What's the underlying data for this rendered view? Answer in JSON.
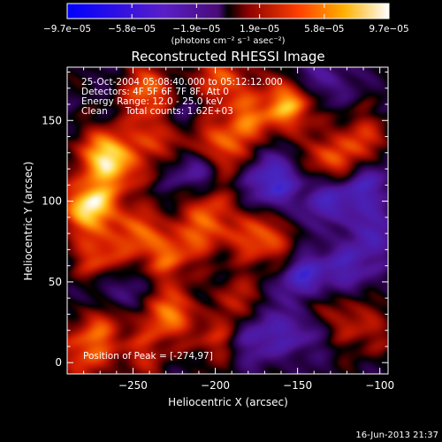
{
  "chart_data": {
    "type": "heatmap",
    "title": "Reconstructed RHESSI Image",
    "xlabel": "Heliocentric X (arcsec)",
    "ylabel": "Heliocentric Y (arcsec)",
    "xlim": [
      -290,
      -95
    ],
    "ylim": [
      -7,
      183
    ],
    "x_ticks": [
      -250,
      -200,
      -150,
      -100
    ],
    "x_tick_labels": [
      "−250",
      "−200",
      "−150",
      "−100"
    ],
    "y_ticks": [
      0,
      50,
      100,
      150
    ],
    "y_tick_labels": [
      "0",
      "50",
      "100",
      "150"
    ],
    "colorbar": {
      "tick_values": [
        -9.7e-05,
        -5.8e-05,
        -1.9e-05,
        1.9e-05,
        5.8e-05,
        9.7e-05
      ],
      "tick_labels": [
        "−9.7e−05",
        "−5.8e−05",
        "−1.9e−05",
        "1.9e−05",
        "5.8e−05",
        "9.7e−05"
      ],
      "unit_label": "(photons cm⁻² s⁻¹ asec⁻²)",
      "range": [
        -9.7e-05,
        9.7e-05
      ]
    },
    "annotations": {
      "time_range": "25-Oct-2004 05:08:40.000 to 05:12:12.000",
      "detectors": "Detectors: 4F 5F 6F 7F 8F, Att 0",
      "energy": "Energy Range: 12.0 - 25.0 keV",
      "clean": "Clean      Total counts: 1.62E+03",
      "peak": "Position of Peak = [-274,97]"
    },
    "peak_position": [
      -274,
      97
    ],
    "sources": [
      {
        "x": -276,
        "y": 97,
        "value": 9.7e-05
      },
      {
        "x": -270,
        "y": 130,
        "value": 6.5e-05
      },
      {
        "x": -240,
        "y": 168,
        "value": 6e-05
      },
      {
        "x": -195,
        "y": 175,
        "value": 5.5e-05
      },
      {
        "x": -155,
        "y": 160,
        "value": 7.5e-05
      },
      {
        "x": -258,
        "y": 120,
        "value": 5e-05
      },
      {
        "x": -238,
        "y": 140,
        "value": 4.8e-05
      },
      {
        "x": -208,
        "y": 140,
        "value": 4.2e-05
      },
      {
        "x": -196,
        "y": 128,
        "value": 4e-05
      },
      {
        "x": -180,
        "y": 150,
        "value": 5.2e-05
      },
      {
        "x": -128,
        "y": 125,
        "value": 5.8e-05
      },
      {
        "x": -110,
        "y": 140,
        "value": 3.5e-05
      },
      {
        "x": -270,
        "y": 65,
        "value": 5e-05
      },
      {
        "x": -248,
        "y": 82,
        "value": 4.5e-05
      },
      {
        "x": -230,
        "y": 65,
        "value": 4.8e-05
      },
      {
        "x": -212,
        "y": 80,
        "value": 4.2e-05
      },
      {
        "x": -205,
        "y": 100,
        "value": 4e-05
      },
      {
        "x": -180,
        "y": 80,
        "value": 5e-05
      },
      {
        "x": -160,
        "y": 70,
        "value": 3.2e-05
      },
      {
        "x": -230,
        "y": 30,
        "value": 6.2e-05
      },
      {
        "x": -270,
        "y": 22,
        "value": 4e-05
      },
      {
        "x": -280,
        "y": 5,
        "value": 4.5e-05
      },
      {
        "x": -200,
        "y": 15,
        "value": 3.5e-05
      },
      {
        "x": -245,
        "y": 5,
        "value": 3.2e-05
      },
      {
        "x": -188,
        "y": 40,
        "value": 3e-05
      },
      {
        "x": -140,
        "y": 40,
        "value": 3e-05
      },
      {
        "x": -122,
        "y": 28,
        "value": 2.5e-05
      },
      {
        "x": -105,
        "y": 18,
        "value": 2.2e-05
      },
      {
        "x": -165,
        "y": 112,
        "value": -6.5e-05
      },
      {
        "x": -210,
        "y": 118,
        "value": -5e-05
      },
      {
        "x": -145,
        "y": 52,
        "value": -7.5e-05
      },
      {
        "x": -130,
        "y": 100,
        "value": -5e-05
      },
      {
        "x": -108,
        "y": 110,
        "value": -4.5e-05
      },
      {
        "x": -118,
        "y": 60,
        "value": -4e-05
      },
      {
        "x": -175,
        "y": 15,
        "value": -4e-05
      },
      {
        "x": -150,
        "y": 20,
        "value": -3.8e-05
      },
      {
        "x": -102,
        "y": 80,
        "value": -3.5e-05
      },
      {
        "x": -220,
        "y": 150,
        "value": -3e-05
      },
      {
        "x": -135,
        "y": 175,
        "value": -3.5e-05
      },
      {
        "x": -258,
        "y": 45,
        "value": -3e-05
      }
    ]
  },
  "footer": {
    "timestamp": "16-Jun-2013 21:37"
  }
}
